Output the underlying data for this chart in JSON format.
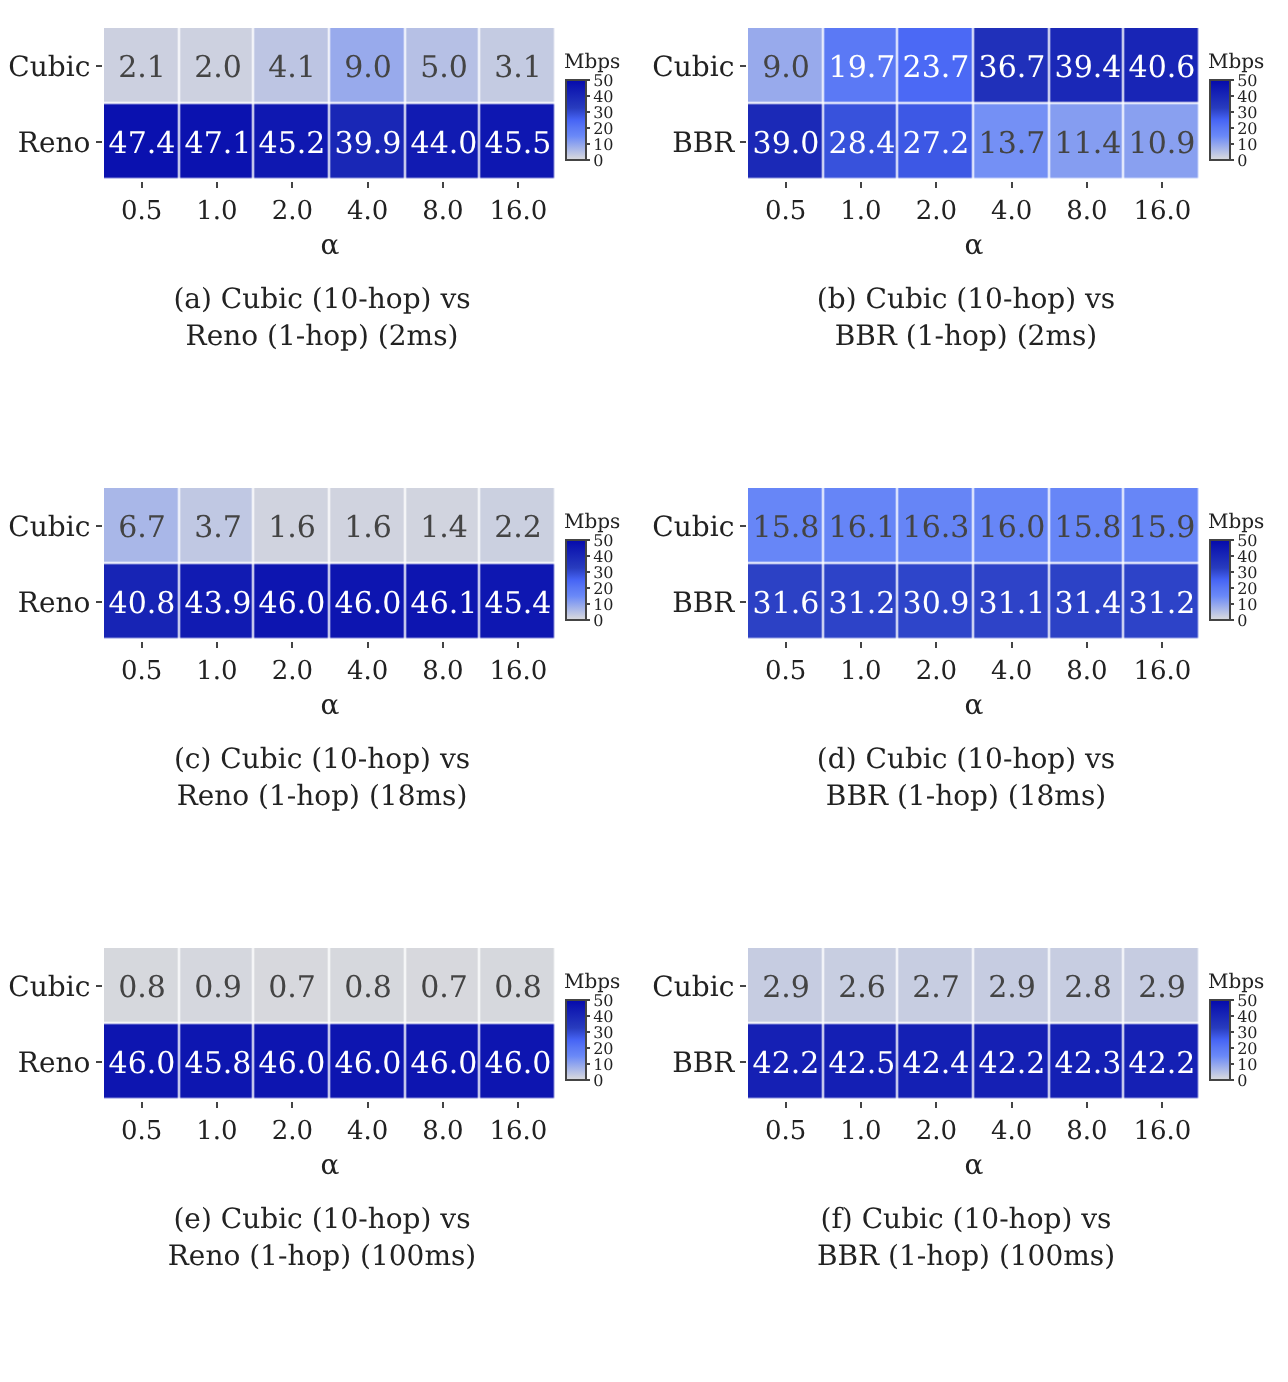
{
  "chart_data": [
    {
      "type": "heatmap",
      "title": "(a) Cubic (10-hop) vs\nReno (1-hop) (2ms)",
      "xlabel": "α",
      "clabel": "Mbps",
      "categories": [
        "0.5",
        "1.0",
        "2.0",
        "4.0",
        "8.0",
        "16.0"
      ],
      "y_categories": [
        "Cubic",
        "Reno"
      ],
      "cells": [
        [
          2.1,
          2.0,
          4.1,
          9.0,
          5.0,
          3.1
        ],
        [
          47.4,
          47.1,
          45.2,
          39.9,
          44.0,
          45.5
        ]
      ],
      "cell_labels": [
        [
          "2.1",
          "2.0",
          "4.1",
          "9.0",
          "5.0",
          "3.1"
        ],
        [
          "47.4",
          "47.1",
          "45.2",
          "39.9",
          "44.0",
          "45.5"
        ]
      ],
      "clim": [
        0,
        50
      ],
      "cticks": [
        0,
        10,
        20,
        30,
        40,
        50
      ]
    },
    {
      "type": "heatmap",
      "title": "(b) Cubic (10-hop) vs\nBBR (1-hop) (2ms)",
      "xlabel": "α",
      "clabel": "Mbps",
      "categories": [
        "0.5",
        "1.0",
        "2.0",
        "4.0",
        "8.0",
        "16.0"
      ],
      "y_categories": [
        "Cubic",
        "BBR"
      ],
      "cells": [
        [
          9.0,
          19.7,
          23.7,
          36.7,
          39.4,
          40.6
        ],
        [
          39.0,
          28.4,
          27.2,
          13.7,
          11.4,
          10.9
        ]
      ],
      "cell_labels": [
        [
          "9.0",
          "19.7",
          "23.7",
          "36.7",
          "39.4",
          "40.6"
        ],
        [
          "39.0",
          "28.4",
          "27.2",
          "13.7",
          "11.4",
          "10.9"
        ]
      ],
      "clim": [
        0,
        50
      ],
      "cticks": [
        0,
        10,
        20,
        30,
        40,
        50
      ]
    },
    {
      "type": "heatmap",
      "title": "(c) Cubic (10-hop) vs\nReno (1-hop) (18ms)",
      "xlabel": "α",
      "clabel": "Mbps",
      "categories": [
        "0.5",
        "1.0",
        "2.0",
        "4.0",
        "8.0",
        "16.0"
      ],
      "y_categories": [
        "Cubic",
        "Reno"
      ],
      "cells": [
        [
          6.7,
          3.7,
          1.6,
          1.6,
          1.4,
          2.2
        ],
        [
          40.8,
          43.9,
          46.0,
          46.0,
          46.1,
          45.4
        ]
      ],
      "cell_labels": [
        [
          "6.7",
          "3.7",
          "1.6",
          "1.6",
          "1.4",
          "2.2"
        ],
        [
          "40.8",
          "43.9",
          "46.0",
          "46.0",
          "46.1",
          "45.4"
        ]
      ],
      "clim": [
        0,
        50
      ],
      "cticks": [
        0,
        10,
        20,
        30,
        40,
        50
      ]
    },
    {
      "type": "heatmap",
      "title": "(d) Cubic (10-hop) vs\nBBR (1-hop) (18ms)",
      "xlabel": "α",
      "clabel": "Mbps",
      "categories": [
        "0.5",
        "1.0",
        "2.0",
        "4.0",
        "8.0",
        "16.0"
      ],
      "y_categories": [
        "Cubic",
        "BBR"
      ],
      "cells": [
        [
          15.8,
          16.1,
          16.3,
          16.0,
          15.8,
          15.9
        ],
        [
          31.6,
          31.2,
          30.9,
          31.1,
          31.4,
          31.2
        ]
      ],
      "cell_labels": [
        [
          "15.8",
          "16.1",
          "16.3",
          "16.0",
          "15.8",
          "15.9"
        ],
        [
          "31.6",
          "31.2",
          "30.9",
          "31.1",
          "31.4",
          "31.2"
        ]
      ],
      "clim": [
        0,
        50
      ],
      "cticks": [
        0,
        10,
        20,
        30,
        40,
        50
      ]
    },
    {
      "type": "heatmap",
      "title": "(e) Cubic (10-hop) vs\nReno (1-hop) (100ms)",
      "xlabel": "α",
      "clabel": "Mbps",
      "categories": [
        "0.5",
        "1.0",
        "2.0",
        "4.0",
        "8.0",
        "16.0"
      ],
      "y_categories": [
        "Cubic",
        "Reno"
      ],
      "cells": [
        [
          0.8,
          0.9,
          0.7,
          0.8,
          0.7,
          0.8
        ],
        [
          46.0,
          45.8,
          46.0,
          46.0,
          46.0,
          46.0
        ]
      ],
      "cell_labels": [
        [
          "0.8",
          "0.9",
          "0.7",
          "0.8",
          "0.7",
          "0.8"
        ],
        [
          "46.0",
          "45.8",
          "46.0",
          "46.0",
          "46.0",
          "46.0"
        ]
      ],
      "clim": [
        0,
        50
      ],
      "cticks": [
        0,
        10,
        20,
        30,
        40,
        50
      ]
    },
    {
      "type": "heatmap",
      "title": "(f) Cubic (10-hop) vs\nBBR (1-hop) (100ms)",
      "xlabel": "α",
      "clabel": "Mbps",
      "categories": [
        "0.5",
        "1.0",
        "2.0",
        "4.0",
        "8.0",
        "16.0"
      ],
      "y_categories": [
        "Cubic",
        "BBR"
      ],
      "cells": [
        [
          2.9,
          2.6,
          2.7,
          2.9,
          2.8,
          2.9
        ],
        [
          42.2,
          42.5,
          42.4,
          42.2,
          42.3,
          42.2
        ]
      ],
      "cell_labels": [
        [
          "2.9",
          "2.6",
          "2.7",
          "2.9",
          "2.8",
          "2.9"
        ],
        [
          "42.2",
          "42.5",
          "42.4",
          "42.2",
          "42.3",
          "42.2"
        ]
      ],
      "clim": [
        0,
        50
      ],
      "cticks": [
        0,
        10,
        20,
        30,
        40,
        50
      ]
    }
  ]
}
